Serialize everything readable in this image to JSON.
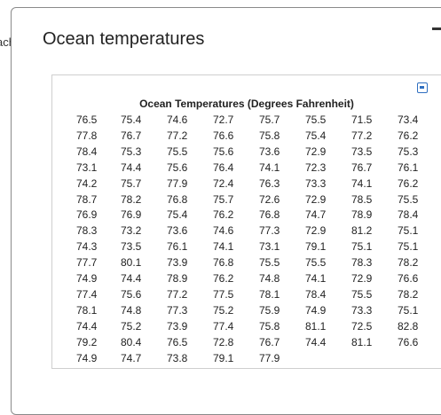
{
  "background_text": "ach",
  "dialog": {
    "title": "Ocean temperatures"
  },
  "table": {
    "title": "Ocean Temperatures (Degrees Fahrenheit)",
    "rows": [
      [
        76.5,
        75.4,
        74.6,
        72.7,
        75.7,
        75.5,
        71.5,
        73.4
      ],
      [
        77.8,
        76.7,
        77.2,
        76.6,
        75.8,
        75.4,
        77.2,
        76.2
      ],
      [
        78.4,
        75.3,
        75.5,
        75.6,
        73.6,
        72.9,
        73.5,
        75.3
      ],
      [
        73.1,
        74.4,
        75.6,
        76.4,
        74.1,
        72.3,
        76.7,
        76.1
      ],
      [
        74.2,
        75.7,
        77.9,
        72.4,
        76.3,
        73.3,
        74.1,
        76.2
      ],
      [
        78.7,
        78.2,
        76.8,
        75.7,
        72.6,
        72.9,
        78.5,
        75.5
      ],
      [
        76.9,
        76.9,
        75.4,
        76.2,
        76.8,
        74.7,
        78.9,
        78.4
      ],
      [
        78.3,
        73.2,
        73.6,
        74.6,
        77.3,
        72.9,
        81.2,
        75.1
      ],
      [
        74.3,
        73.5,
        76.1,
        74.1,
        73.1,
        79.1,
        75.1,
        75.1
      ],
      [
        77.7,
        80.1,
        73.9,
        76.8,
        75.5,
        75.5,
        78.3,
        78.2
      ],
      [
        74.9,
        74.4,
        78.9,
        76.2,
        74.8,
        74.1,
        72.9,
        76.6
      ],
      [
        77.4,
        75.6,
        77.2,
        77.5,
        78.1,
        78.4,
        75.5,
        78.2
      ],
      [
        78.1,
        74.8,
        77.3,
        75.2,
        75.9,
        74.9,
        73.3,
        75.1
      ],
      [
        74.4,
        75.2,
        73.9,
        77.4,
        75.8,
        81.1,
        72.5,
        82.8
      ],
      [
        79.2,
        80.4,
        76.5,
        72.8,
        76.7,
        74.4,
        81.1,
        76.6
      ],
      [
        74.9,
        74.7,
        73.8,
        79.1,
        77.9
      ]
    ]
  }
}
